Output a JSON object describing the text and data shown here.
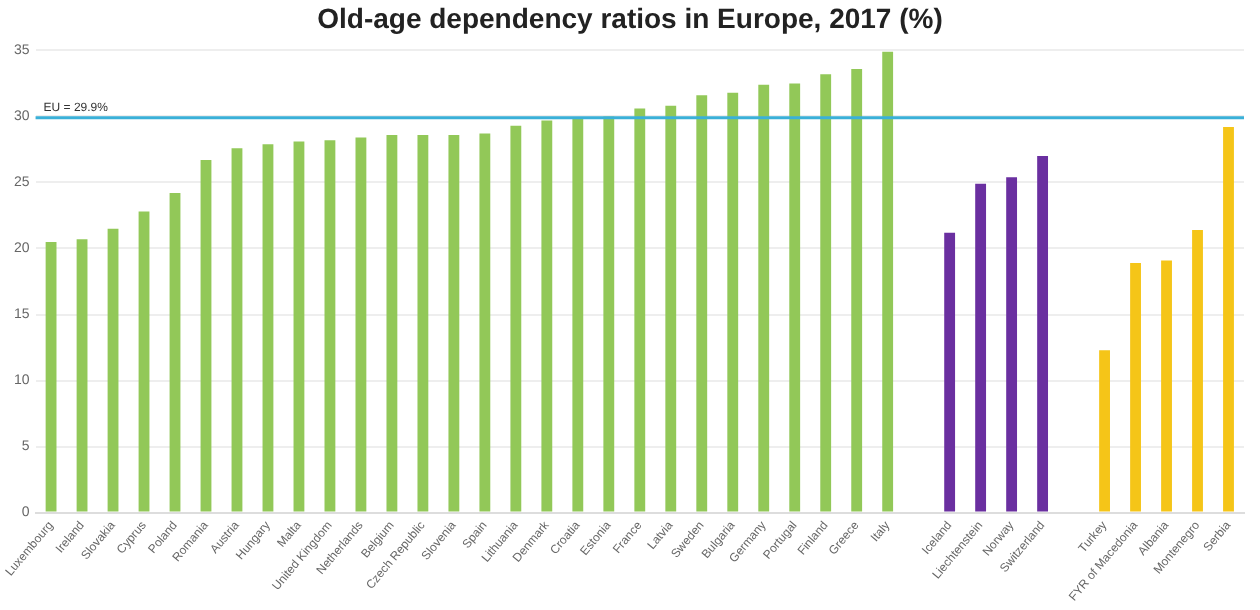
{
  "chart_data": {
    "type": "bar",
    "title": "Old-age dependency ratios in Europe, 2017 (%)",
    "categories": [
      "Luxembourg",
      "Ireland",
      "Slovakia",
      "Cyprus",
      "Poland",
      "Romania",
      "Austria",
      "Hungary",
      "Malta",
      "United Kingdom",
      "Netherlands",
      "Belgium",
      "Czech Republic",
      "Slovenia",
      "Spain",
      "Lithuania",
      "Denmark",
      "Croatia",
      "Estonia",
      "France",
      "Latvia",
      "Sweden",
      "Bulgaria",
      "Germany",
      "Portugal",
      "Finland",
      "Greece",
      "Italy",
      null,
      "Iceland",
      "Liechtenstein",
      "Norway",
      "Switzerland",
      null,
      "Turkey",
      "FYR of Macedonia",
      "Albania",
      "Montenegro",
      "Serbia"
    ],
    "values": [
      20.5,
      20.7,
      21.5,
      22.8,
      24.2,
      26.7,
      27.6,
      27.9,
      28.1,
      28.2,
      28.4,
      28.6,
      28.6,
      28.6,
      28.7,
      29.3,
      29.7,
      29.9,
      30.0,
      30.6,
      30.8,
      31.6,
      31.8,
      32.4,
      32.5,
      33.2,
      33.6,
      34.9,
      null,
      21.2,
      24.9,
      25.4,
      27.0,
      null,
      12.3,
      18.9,
      19.1,
      21.4,
      29.2
    ],
    "colors": [
      "#92c858",
      "#92c858",
      "#92c858",
      "#92c858",
      "#92c858",
      "#92c858",
      "#92c858",
      "#92c858",
      "#92c858",
      "#92c858",
      "#92c858",
      "#92c858",
      "#92c858",
      "#92c858",
      "#92c858",
      "#92c858",
      "#92c858",
      "#92c858",
      "#92c858",
      "#92c858",
      "#92c858",
      "#92c858",
      "#92c858",
      "#92c858",
      "#92c858",
      "#92c858",
      "#92c858",
      "#92c858",
      "#92c858",
      "#6a2fa0",
      "#6a2fa0",
      "#6a2fa0",
      "#6a2fa0",
      "#6a2fa0",
      "#f5c518",
      "#f5c518",
      "#f5c518",
      "#f5c518",
      "#f5c518"
    ],
    "ylim": [
      0,
      35
    ],
    "yticks": [
      0,
      5,
      10,
      15,
      20,
      25,
      30,
      35
    ],
    "grid": "y",
    "ref_lines": [
      {
        "axis": "y",
        "value": 29.9,
        "label": "EU = 29.9%",
        "color": "#3ab0d8"
      }
    ]
  }
}
